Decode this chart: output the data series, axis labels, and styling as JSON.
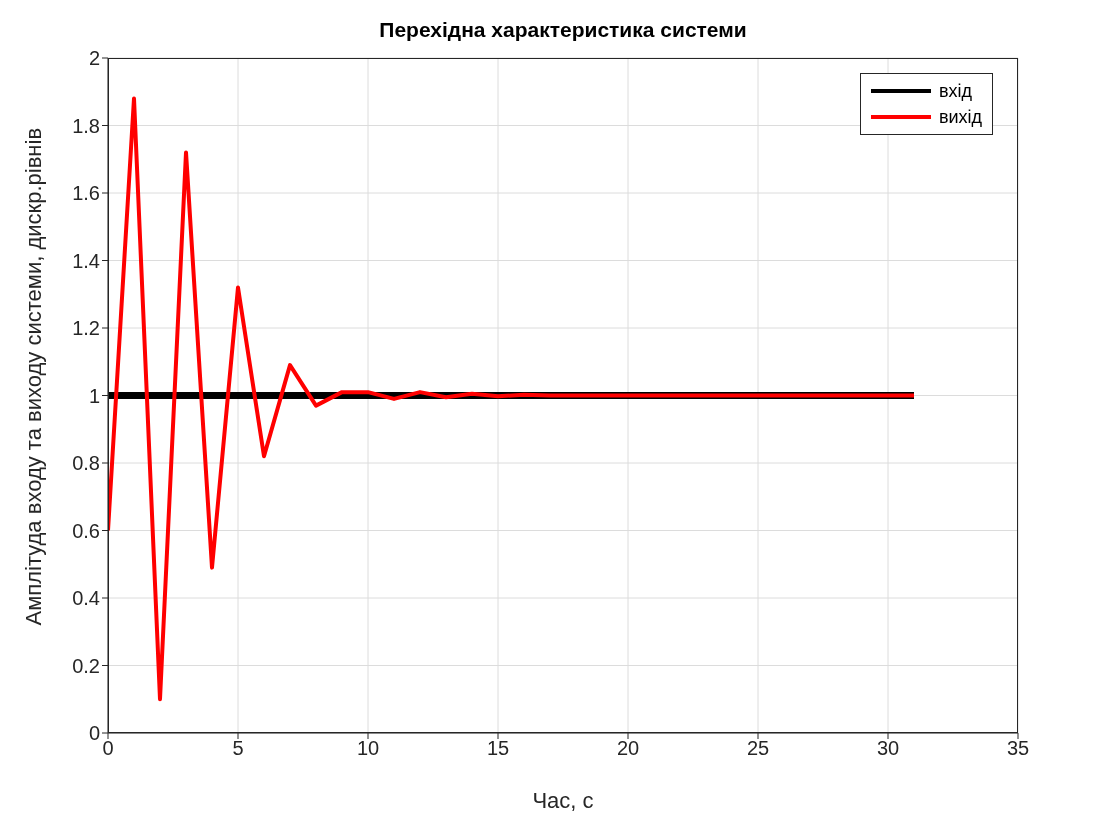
{
  "chart_data": {
    "type": "line",
    "title": "Перехідна характеристика системи",
    "xlabel": "Час, с",
    "ylabel": "Амплітуда входу та виходу системи, дискр.рівнів",
    "series": [
      {
        "name": "вхід",
        "color": "#000000",
        "x": [
          0,
          31
        ],
        "values": [
          1,
          1
        ]
      },
      {
        "name": "вихід",
        "color": "#ff0000",
        "x": [
          0,
          1,
          2,
          3,
          4,
          5,
          6,
          7,
          8,
          9,
          10,
          11,
          12,
          13,
          14,
          15,
          16,
          17,
          18,
          19,
          20,
          21,
          22,
          23,
          24,
          25,
          26,
          27,
          28,
          29,
          30,
          31
        ],
        "values": [
          0.6,
          1.88,
          0.1,
          1.72,
          0.49,
          1.32,
          0.82,
          1.09,
          0.97,
          1.01,
          1.01,
          0.99,
          1.01,
          0.995,
          1.005,
          0.998,
          1.002,
          1,
          1,
          1,
          1,
          1,
          1,
          1,
          1,
          1,
          1,
          1,
          1,
          1,
          1,
          1
        ]
      }
    ],
    "xlim": [
      0,
      35
    ],
    "xticks": [
      0,
      5,
      10,
      15,
      20,
      25,
      30,
      35
    ],
    "ylim": [
      0,
      2
    ],
    "yticks": [
      0,
      0.2,
      0.4,
      0.6,
      0.8,
      1,
      1.2,
      1.4,
      1.6,
      1.8,
      2
    ],
    "grid": true,
    "legend": "top right",
    "marker": "none",
    "line_style": "solid"
  }
}
